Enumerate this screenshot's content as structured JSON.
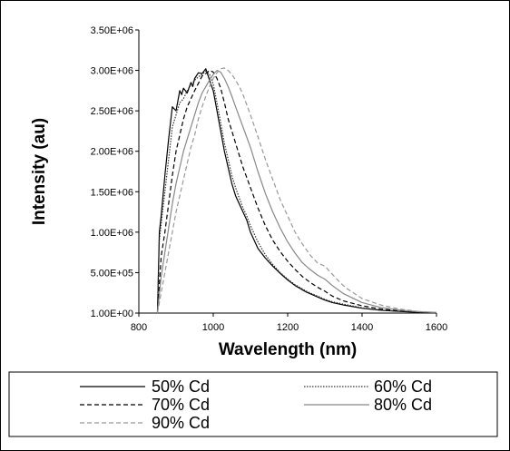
{
  "chart_data": {
    "type": "line",
    "title": "",
    "xlabel": "Wavelength (nm)",
    "ylabel": "Intensity (au)",
    "xlim": [
      800,
      1600
    ],
    "ylim": [
      1,
      3500000
    ],
    "x_ticks": [
      800,
      1000,
      1200,
      1400,
      1600
    ],
    "x_tick_labels": [
      "800",
      "1000",
      "1200",
      "1400",
      "1600"
    ],
    "y_ticks": [
      1,
      500000,
      1000000,
      1500000,
      2000000,
      2500000,
      3000000,
      3500000
    ],
    "y_tick_labels": [
      "1.00E+00",
      "5.00E+05",
      "1.00E+06",
      "1.50E+06",
      "2.00E+06",
      "2.50E+06",
      "3.00E+06",
      "3.50E+06"
    ],
    "grid": false,
    "legend_position": "bottom",
    "series": [
      {
        "name": "50% Cd",
        "color": "#000000",
        "style": "solid",
        "x": [
          850,
          855,
          860,
          870,
          880,
          890,
          900,
          910,
          915,
          920,
          930,
          940,
          945,
          950,
          960,
          970,
          980,
          990,
          1000,
          1010,
          1020,
          1030,
          1040,
          1050,
          1060,
          1070,
          1080,
          1090,
          1100,
          1110,
          1120,
          1140,
          1160,
          1180,
          1200,
          1220,
          1250,
          1280,
          1300,
          1320,
          1350,
          1400,
          1450,
          1500,
          1550,
          1600
        ],
        "y": [
          0,
          1000000,
          1200000,
          1700000,
          2150000,
          2550000,
          2500000,
          2750000,
          2700000,
          2780000,
          2720000,
          2850000,
          2800000,
          2900000,
          2970000,
          2960000,
          3020000,
          2880000,
          2750000,
          2500000,
          2250000,
          2000000,
          1800000,
          1600000,
          1450000,
          1350000,
          1250000,
          1150000,
          1000000,
          900000,
          800000,
          680000,
          580000,
          490000,
          410000,
          340000,
          260000,
          200000,
          160000,
          130000,
          100000,
          60000,
          35000,
          20000,
          10000,
          5000
        ]
      },
      {
        "name": "60% Cd",
        "color": "#333333",
        "style": "dotted",
        "x": [
          850,
          855,
          860,
          870,
          880,
          890,
          900,
          910,
          920,
          930,
          940,
          950,
          960,
          970,
          980,
          990,
          1000,
          1010,
          1020,
          1030,
          1040,
          1050,
          1060,
          1070,
          1080,
          1090,
          1100,
          1120,
          1140,
          1160,
          1180,
          1200,
          1220,
          1250,
          1280,
          1300,
          1320,
          1350,
          1400,
          1450,
          1500,
          1550,
          1600
        ],
        "y": [
          0,
          900000,
          1100000,
          1500000,
          1900000,
          2300000,
          2450000,
          2600000,
          2650000,
          2750000,
          2820000,
          2880000,
          2920000,
          2950000,
          2990000,
          2950000,
          2830000,
          2600000,
          2350000,
          2100000,
          1900000,
          1700000,
          1550000,
          1420000,
          1300000,
          1200000,
          1080000,
          880000,
          720000,
          600000,
          500000,
          420000,
          350000,
          270000,
          210000,
          170000,
          140000,
          110000,
          65000,
          38000,
          22000,
          12000,
          6000
        ]
      },
      {
        "name": "70% Cd",
        "color": "#000000",
        "style": "dashed",
        "x": [
          850,
          860,
          870,
          880,
          890,
          900,
          910,
          920,
          930,
          940,
          950,
          960,
          970,
          980,
          990,
          1000,
          1010,
          1020,
          1030,
          1040,
          1050,
          1060,
          1080,
          1100,
          1120,
          1140,
          1160,
          1180,
          1200,
          1220,
          1240,
          1260,
          1280,
          1300,
          1320,
          1350,
          1400,
          1450,
          1500,
          1550,
          1600
        ],
        "y": [
          0,
          700000,
          1000000,
          1350000,
          1700000,
          2000000,
          2200000,
          2400000,
          2550000,
          2650000,
          2750000,
          2840000,
          2930000,
          2960000,
          3000000,
          2980000,
          2900000,
          2780000,
          2600000,
          2400000,
          2250000,
          2100000,
          1800000,
          1550000,
          1300000,
          1080000,
          900000,
          760000,
          640000,
          540000,
          450000,
          380000,
          320000,
          270000,
          210000,
          150000,
          90000,
          50000,
          28000,
          15000,
          7000
        ]
      },
      {
        "name": "80% Cd",
        "color": "#888888",
        "style": "solid",
        "x": [
          850,
          860,
          870,
          880,
          890,
          900,
          910,
          920,
          930,
          940,
          950,
          960,
          970,
          980,
          990,
          1000,
          1010,
          1020,
          1030,
          1040,
          1050,
          1060,
          1080,
          1100,
          1120,
          1140,
          1160,
          1180,
          1200,
          1220,
          1240,
          1260,
          1280,
          1300,
          1320,
          1350,
          1400,
          1450,
          1500,
          1550,
          1600
        ],
        "y": [
          0,
          450000,
          750000,
          1050000,
          1350000,
          1600000,
          1800000,
          2000000,
          2150000,
          2300000,
          2450000,
          2600000,
          2720000,
          2800000,
          2880000,
          2950000,
          3000000,
          2980000,
          2900000,
          2800000,
          2680000,
          2550000,
          2300000,
          2050000,
          1750000,
          1480000,
          1250000,
          1050000,
          880000,
          740000,
          620000,
          540000,
          470000,
          420000,
          340000,
          240000,
          130000,
          70000,
          38000,
          18000,
          8000
        ]
      },
      {
        "name": "90% Cd",
        "color": "#999999",
        "style": "dashed",
        "x": [
          850,
          860,
          870,
          880,
          890,
          900,
          910,
          920,
          930,
          940,
          950,
          960,
          970,
          980,
          990,
          1000,
          1010,
          1020,
          1030,
          1040,
          1050,
          1060,
          1070,
          1080,
          1100,
          1120,
          1140,
          1160,
          1180,
          1200,
          1220,
          1240,
          1260,
          1280,
          1300,
          1320,
          1340,
          1360,
          1400,
          1450,
          1500,
          1550,
          1600
        ],
        "y": [
          0,
          250000,
          500000,
          750000,
          1000000,
          1250000,
          1450000,
          1650000,
          1850000,
          2050000,
          2200000,
          2400000,
          2550000,
          2680000,
          2800000,
          2900000,
          2970000,
          3020000,
          3030000,
          3000000,
          2950000,
          2880000,
          2800000,
          2700000,
          2450000,
          2180000,
          1900000,
          1650000,
          1400000,
          1200000,
          1000000,
          850000,
          720000,
          620000,
          580000,
          480000,
          380000,
          300000,
          180000,
          100000,
          50000,
          20000,
          8000
        ]
      }
    ]
  }
}
